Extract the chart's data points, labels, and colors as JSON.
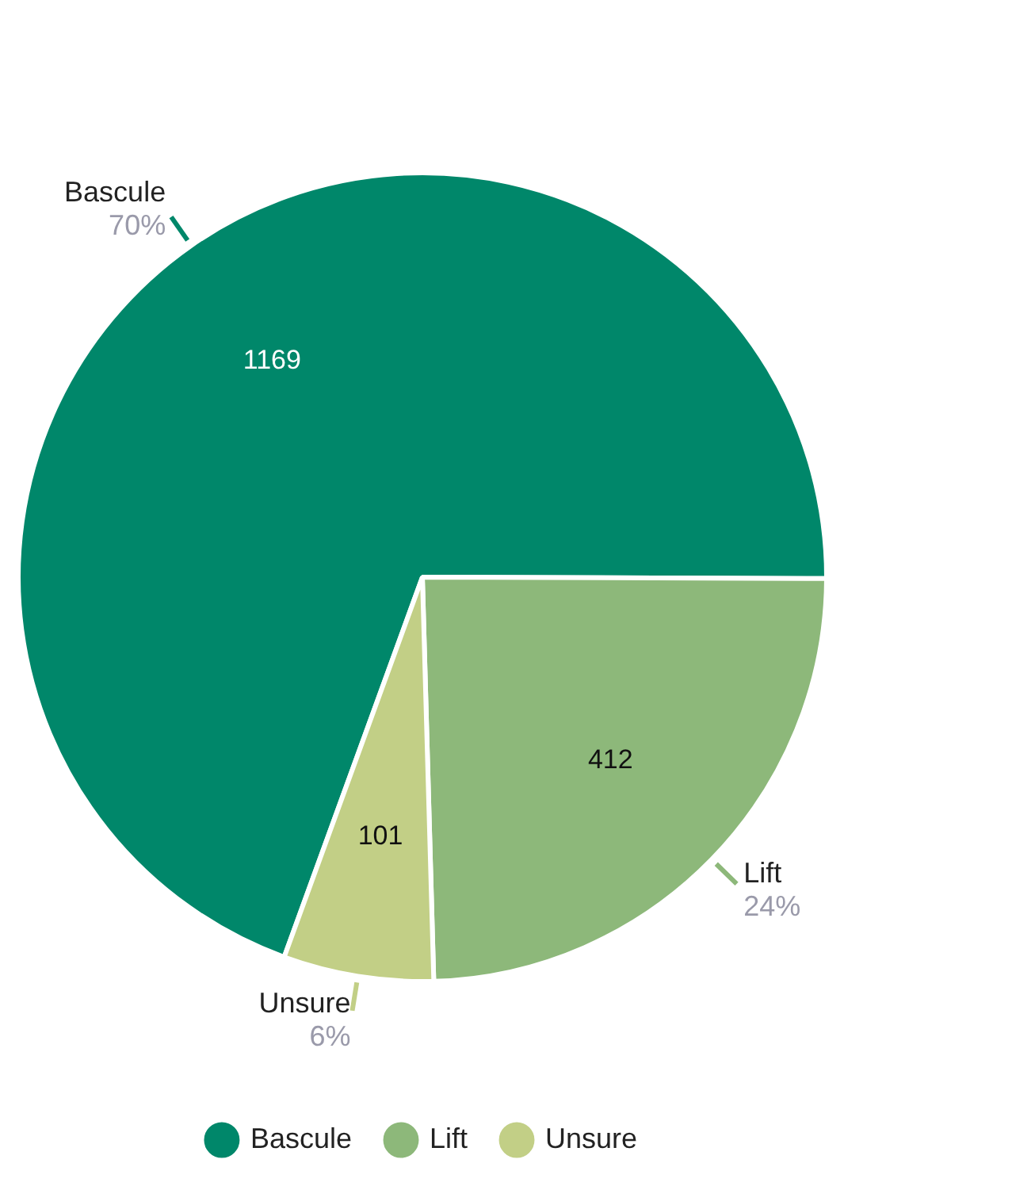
{
  "chart_data": {
    "type": "pie",
    "categories": [
      "Bascule",
      "Lift",
      "Unsure"
    ],
    "values": [
      1169,
      412,
      101
    ],
    "colors": [
      "#00876a",
      "#8db87a",
      "#c2cf86"
    ],
    "data_labels": true,
    "annotations": [
      "70%",
      "24%",
      "6%"
    ],
    "legend": "bottom"
  }
}
